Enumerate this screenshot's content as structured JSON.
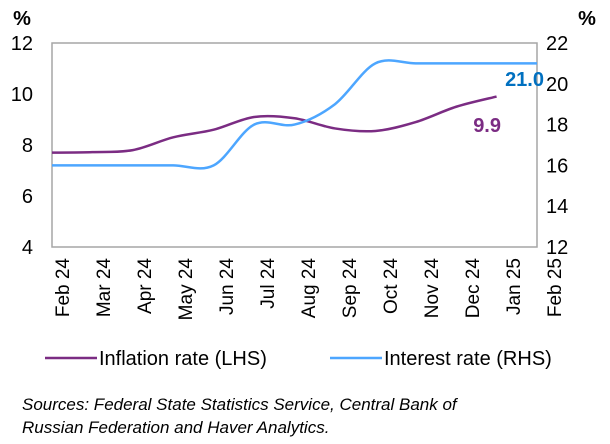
{
  "chart_data": {
    "type": "line",
    "left_unit": "%",
    "right_unit": "%",
    "categories": [
      "Feb 24",
      "Mar 24",
      "Apr 24",
      "May 24",
      "Jun 24",
      "Jul 24",
      "Aug 24",
      "Sep 24",
      "Oct 24",
      "Nov 24",
      "Dec 24",
      "Jan 25",
      "Feb 25"
    ],
    "left_axis": {
      "min": 4,
      "max": 12,
      "ticks": [
        "4",
        "6",
        "8",
        "10",
        "12"
      ]
    },
    "right_axis": {
      "min": 12,
      "max": 22,
      "ticks": [
        "12",
        "14",
        "16",
        "18",
        "20",
        "22"
      ]
    },
    "series": [
      {
        "name": "Inflation rate (LHS)",
        "axis": "left",
        "color": "#7B2C83",
        "values": [
          7.7,
          7.72,
          7.8,
          8.3,
          8.6,
          9.1,
          9.05,
          8.65,
          8.55,
          8.9,
          9.5,
          9.9,
          null
        ],
        "end_label": "9.9",
        "end_label_color": "#7B2C83"
      },
      {
        "name": "Interest rate (RHS)",
        "axis": "right",
        "color": "#4DA6FF",
        "values": [
          16,
          16,
          16,
          16,
          16,
          18,
          18,
          19,
          21,
          21,
          21,
          21,
          21
        ],
        "end_label": "21.0",
        "end_label_color": "#0070C0"
      }
    ],
    "grid": false,
    "legend": "bottom"
  },
  "legend": {
    "inflation": "Inflation rate (LHS)",
    "interest": "Interest rate (RHS)"
  },
  "sources": {
    "line1": "Sources: Federal State Statistics Service, Central Bank of",
    "line2": "Russian Federation and Haver Analytics."
  }
}
